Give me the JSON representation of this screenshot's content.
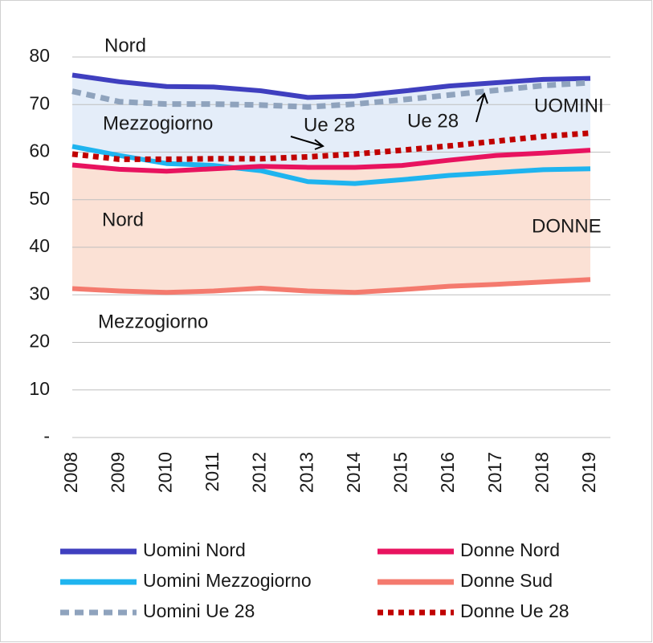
{
  "chart_data": {
    "type": "line",
    "categories": [
      "2008",
      "2009",
      "2010",
      "2011",
      "2012",
      "2013",
      "2014",
      "2015",
      "2016",
      "2017",
      "2018",
      "2019"
    ],
    "series": [
      {
        "name": "Uomini Nord",
        "color": "#3f3fbf",
        "style": "solid",
        "values": [
          76.2,
          74.8,
          73.8,
          73.7,
          72.9,
          71.5,
          71.8,
          72.8,
          73.9,
          74.6,
          75.3,
          75.5
        ]
      },
      {
        "name": "Uomini Mezzogiorno",
        "color": "#1fb4ef",
        "style": "solid",
        "values": [
          61.2,
          59.3,
          57.6,
          57.2,
          56.1,
          53.8,
          53.4,
          54.2,
          55.1,
          55.7,
          56.3,
          56.5
        ]
      },
      {
        "name": "Uomini Ue 28",
        "color": "#8fa3bd",
        "style": "dashed",
        "values": [
          72.8,
          70.6,
          70.1,
          70.1,
          69.9,
          69.5,
          70.1,
          71.0,
          72.0,
          73.0,
          74.0,
          74.6
        ]
      },
      {
        "name": "Donne Nord",
        "color": "#e8135f",
        "style": "solid",
        "values": [
          57.3,
          56.4,
          56.0,
          56.5,
          57.0,
          56.8,
          56.8,
          57.2,
          58.3,
          59.3,
          59.8,
          60.4
        ]
      },
      {
        "name": "Donne Sud",
        "color": "#f47a6e",
        "style": "solid",
        "values": [
          31.3,
          30.8,
          30.5,
          30.8,
          31.4,
          30.8,
          30.5,
          31.1,
          31.8,
          32.2,
          32.7,
          33.2
        ]
      },
      {
        "name": "Donne Ue 28",
        "color": "#c00000",
        "style": "dotted",
        "values": [
          59.6,
          58.5,
          58.5,
          58.6,
          58.6,
          59.0,
          59.6,
          60.4,
          61.3,
          62.3,
          63.3,
          64.0
        ]
      }
    ],
    "ylim": [
      0,
      80
    ],
    "yticks": [
      {
        "value": 0,
        "label": "-"
      },
      10,
      20,
      30,
      40,
      50,
      60,
      70,
      80
    ],
    "grid": true,
    "annotations": [
      "Nord",
      "Mezzogiorno",
      "Ue 28",
      "Ue 28",
      "UOMINI",
      "Nord",
      "DONNE",
      "Mezzogiorno"
    ]
  }
}
